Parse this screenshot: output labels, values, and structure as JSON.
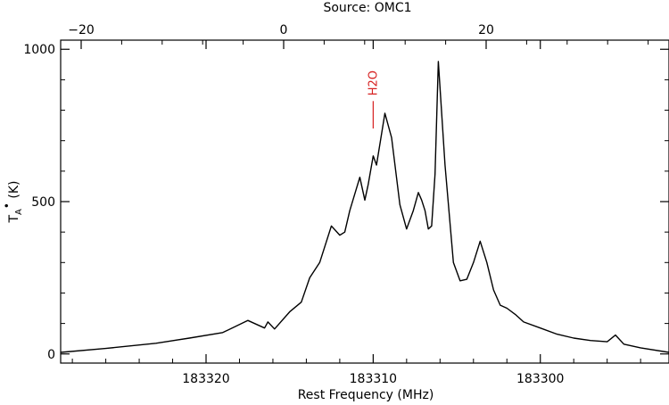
{
  "chart_data": {
    "type": "line",
    "title": "Source: OMC1",
    "xlabel": "Rest Frequency (MHz)",
    "ylabel": "T_A* (K)",
    "xlim": [
      183328.7,
      183292.3
    ],
    "ylim": [
      -30,
      1030
    ],
    "x_ticks": [
      183320,
      183310,
      183300
    ],
    "x_tick_labels": [
      "183320",
      "183310",
      "183300"
    ],
    "y_ticks": [
      0,
      500,
      1000
    ],
    "y_tick_labels": [
      "0",
      "500",
      "1000"
    ],
    "top_axis": {
      "ticks": [
        -20,
        0,
        20
      ],
      "tick_labels": [
        "−20",
        "0",
        "20"
      ]
    },
    "grid": false,
    "line_color": "#000000",
    "annotations": [
      {
        "label": "H2O",
        "x": 183310.0,
        "y_from": 740,
        "y_to": 830,
        "color": "#d62020"
      }
    ],
    "series": [
      {
        "x": [
          183328.7,
          183326.0,
          183323.0,
          183321.0,
          183319.0,
          183317.5,
          183316.5,
          183316.3,
          183315.9,
          183315.0,
          183314.3,
          183313.8,
          183313.2,
          183312.5,
          183312.0,
          183311.7,
          183311.4,
          183310.8,
          183310.5,
          183310.3,
          183310.0,
          183309.8,
          183309.3,
          183308.9,
          183308.4,
          183308.0,
          183307.6,
          183307.3,
          183307.1,
          183306.9,
          183306.7,
          183306.5,
          183306.3,
          183306.1,
          183305.7,
          183305.2,
          183304.8,
          183304.4,
          183304.0,
          183303.6,
          183303.2,
          183302.8,
          183302.4,
          183302.0,
          183301.5,
          183301.0,
          183300.0,
          183299.0,
          183298.0,
          183297.0,
          183296.0,
          183295.5,
          183295.0,
          183294.0,
          183292.3
        ],
        "y": [
          5,
          18,
          35,
          52,
          70,
          110,
          85,
          105,
          82,
          138,
          170,
          250,
          300,
          420,
          390,
          400,
          470,
          580,
          505,
          555,
          650,
          620,
          790,
          710,
          490,
          410,
          470,
          530,
          505,
          470,
          410,
          420,
          590,
          960,
          620,
          300,
          240,
          245,
          300,
          370,
          300,
          210,
          160,
          150,
          130,
          105,
          85,
          65,
          52,
          44,
          40,
          62,
          32,
          20,
          5
        ]
      }
    ]
  }
}
